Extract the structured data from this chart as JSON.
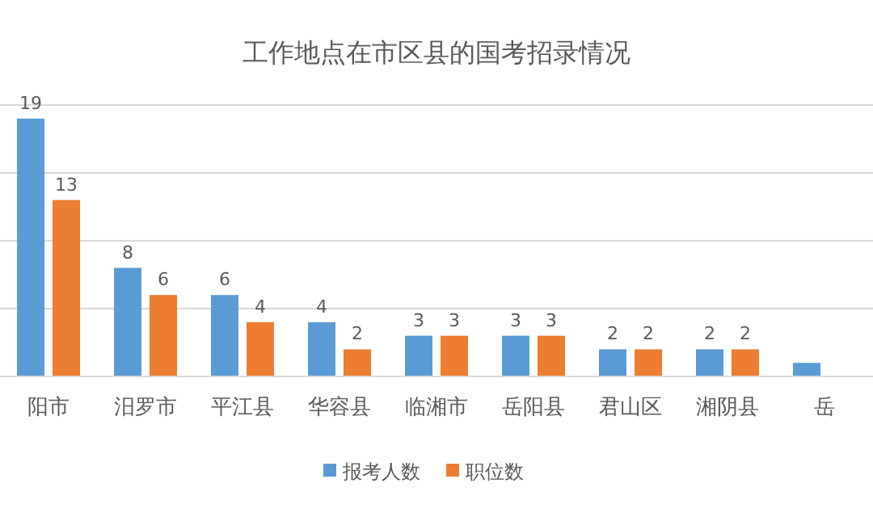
{
  "chart_data": {
    "type": "bar",
    "title": "工作地点在市区县的国考招录情况",
    "categories": [
      "阳市",
      "汨罗市",
      "平江县",
      "华容县",
      "临湘市",
      "岳阳县",
      "君山区",
      "湘阴县",
      "岳"
    ],
    "series": [
      {
        "name": "报考人数",
        "color": "#5b9bd5",
        "values": [
          19,
          8,
          6,
          4,
          3,
          3,
          2,
          2,
          1
        ],
        "value_labels": [
          "19",
          "8",
          "6",
          "4",
          "3",
          "3",
          "2",
          "2",
          null
        ]
      },
      {
        "name": "职位数",
        "color": "#ed7d31",
        "values": [
          13,
          6,
          4,
          2,
          3,
          3,
          2,
          2,
          null
        ],
        "value_labels": [
          "13",
          "6",
          "4",
          "2",
          "3",
          "3",
          "2",
          "2",
          null
        ]
      }
    ],
    "ylim": [
      0,
      20
    ],
    "yticks": [
      {
        "value": 0,
        "label": null
      },
      {
        "value": 5,
        "label": null
      },
      {
        "value": 10,
        "label": null
      },
      {
        "value": 15,
        "label": null
      },
      {
        "value": 20,
        "label": null
      }
    ],
    "grid": "y",
    "legend": "bottom",
    "tick_labels": "x"
  }
}
